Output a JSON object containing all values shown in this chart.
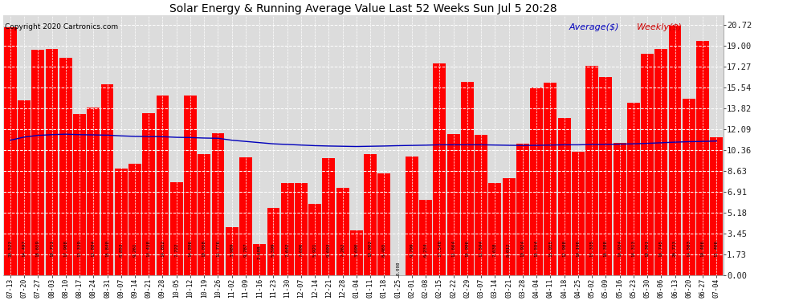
{
  "title": "Solar Energy & Running Average Value Last 52 Weeks Sun Jul 5 20:28",
  "copyright": "Copyright 2020 Cartronics.com",
  "bar_color": "#ff0000",
  "avg_line_color": "#0000bb",
  "weekly_color": "#cc0000",
  "background_color": "#ffffff",
  "plot_bg_color": "#dcdcdc",
  "grid_color": "#ffffff",
  "legend_avg": "Average($)",
  "legend_weekly": "Weekly($)",
  "yticks": [
    0.0,
    1.73,
    3.45,
    5.18,
    6.91,
    8.63,
    10.36,
    12.09,
    13.82,
    15.54,
    17.27,
    19.0,
    20.72
  ],
  "ymax": 21.5,
  "categories": [
    "07-13",
    "07-20",
    "07-27",
    "08-03",
    "08-10",
    "08-17",
    "08-24",
    "08-31",
    "09-07",
    "09-14",
    "09-21",
    "09-28",
    "10-05",
    "10-12",
    "10-19",
    "10-26",
    "11-02",
    "11-09",
    "11-16",
    "11-23",
    "11-30",
    "12-07",
    "12-14",
    "12-21",
    "12-28",
    "01-04",
    "01-11",
    "01-18",
    "01-25",
    "02-01",
    "02-08",
    "02-15",
    "02-22",
    "02-29",
    "03-07",
    "03-14",
    "03-21",
    "03-28",
    "04-04",
    "04-11",
    "04-18",
    "04-25",
    "05-02",
    "05-09",
    "05-16",
    "05-23",
    "05-30",
    "06-06",
    "06-13",
    "06-20",
    "06-27",
    "07-04"
  ],
  "values": [
    20.523,
    14.497,
    18.659,
    18.711,
    17.988,
    13.339,
    13.884,
    15.84,
    8.853,
    9.261,
    13.438,
    14.852,
    7.722,
    14.896,
    10.058,
    11.776,
    3.989,
    9.787,
    2.608,
    5.599,
    7.642,
    7.606,
    5.921,
    9.693,
    7.262,
    3.69,
    10.002,
    8.465,
    0.008,
    9.799,
    6.234,
    17.549,
    11.664,
    15.996,
    11.594,
    7.638,
    8.012,
    10.924,
    15.554,
    15.955,
    12.988,
    10.196,
    17.335,
    16.388,
    10.934,
    14.313,
    18.301,
    18.745,
    20.723,
    14.583,
    19.406,
    11.406
  ],
  "avg_values": [
    11.18,
    11.44,
    11.58,
    11.64,
    11.68,
    11.64,
    11.62,
    11.6,
    11.54,
    11.5,
    11.48,
    11.47,
    11.42,
    11.4,
    11.36,
    11.34,
    11.18,
    11.08,
    10.98,
    10.88,
    10.83,
    10.78,
    10.73,
    10.7,
    10.68,
    10.66,
    10.68,
    10.7,
    10.73,
    10.75,
    10.77,
    10.8,
    10.8,
    10.8,
    10.8,
    10.78,
    10.76,
    10.75,
    10.76,
    10.78,
    10.8,
    10.8,
    10.82,
    10.83,
    10.86,
    10.88,
    10.92,
    10.97,
    11.02,
    11.06,
    11.08,
    11.11
  ]
}
